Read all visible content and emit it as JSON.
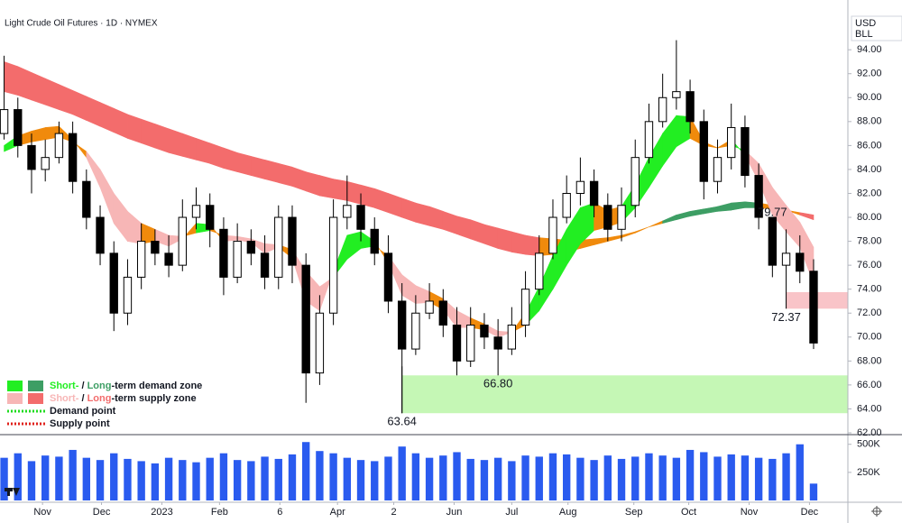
{
  "chart_data": {
    "type": "candlestick",
    "title": "Light Crude Oil Futures · 1D · NYMEX",
    "currency": "USD",
    "unit": "BLL",
    "xlim": [
      -0.3,
      61.5
    ],
    "xticks": [
      {
        "value": 2.8,
        "label": "Nov"
      },
      {
        "value": 7.1,
        "label": "Dec"
      },
      {
        "value": 11.5,
        "label": "2023"
      },
      {
        "value": 15.7,
        "label": "Feb"
      },
      {
        "value": 20.1,
        "label": "6"
      },
      {
        "value": 24.3,
        "label": "Apr"
      },
      {
        "value": 28.4,
        "label": "2"
      },
      {
        "value": 32.8,
        "label": "Jun"
      },
      {
        "value": 37.0,
        "label": "Jul"
      },
      {
        "value": 41.1,
        "label": "Aug"
      },
      {
        "value": 45.9,
        "label": "Sep"
      },
      {
        "value": 49.9,
        "label": "Oct"
      },
      {
        "value": 54.3,
        "label": "Nov"
      },
      {
        "value": 58.7,
        "label": "Dec"
      }
    ],
    "ylim": [
      62,
      96.8
    ],
    "yticks": [
      {
        "value": 62,
        "label": "62.00"
      },
      {
        "value": 64,
        "label": "64.00"
      },
      {
        "value": 66,
        "label": "66.00"
      },
      {
        "value": 68,
        "label": "68.00"
      },
      {
        "value": 70,
        "label": "70.00"
      },
      {
        "value": 72,
        "label": "72.00"
      },
      {
        "value": 74,
        "label": "74.00"
      },
      {
        "value": 76,
        "label": "76.00"
      },
      {
        "value": 78,
        "label": "78.00"
      },
      {
        "value": 80,
        "label": "80.00"
      },
      {
        "value": 82,
        "label": "82.00"
      },
      {
        "value": 84,
        "label": "84.00"
      },
      {
        "value": 86,
        "label": "86.00"
      },
      {
        "value": 88,
        "label": "88.00"
      },
      {
        "value": 90,
        "label": "90.00"
      },
      {
        "value": 92,
        "label": "92.00"
      },
      {
        "value": 94,
        "label": "94.00"
      }
    ],
    "up_color": "#ffffff",
    "down_color": "#000000",
    "open": [
      87,
      89,
      86,
      84,
      85,
      87,
      83,
      80,
      77,
      72,
      75,
      78,
      77,
      76,
      80,
      81,
      79,
      75,
      78,
      77,
      75,
      80,
      76,
      67,
      72,
      80,
      81,
      79,
      77,
      73,
      69,
      72,
      73,
      71,
      68,
      71,
      70,
      69,
      71,
      74,
      77,
      80,
      82,
      83,
      81,
      79,
      81,
      85,
      88,
      90,
      90.5,
      88,
      83,
      85,
      87.5,
      83.5,
      80,
      76,
      77,
      75.5
    ],
    "high": [
      93.5,
      90,
      87,
      86.5,
      88,
      88,
      84,
      81,
      78,
      76.5,
      79.5,
      79,
      78.5,
      81.5,
      82.5,
      82,
      80,
      79.5,
      79,
      78.5,
      81,
      81,
      77,
      73.5,
      81.5,
      83.5,
      82,
      80,
      78.5,
      74.5,
      73.5,
      74.5,
      74,
      72.5,
      72.5,
      72,
      71.5,
      72.5,
      75.5,
      78.5,
      81.5,
      83.5,
      85,
      84,
      82,
      82.5,
      86.5,
      89.5,
      92,
      94.8,
      91.5,
      89,
      86.5,
      89.5,
      88.5,
      84.5,
      79.77,
      79,
      78.5,
      76.5
    ],
    "low": [
      86.5,
      85,
      82,
      83,
      84.5,
      82,
      79,
      76,
      70.5,
      71,
      74,
      76,
      75,
      75.5,
      79,
      77.5,
      73.5,
      74.5,
      76,
      74,
      74,
      74.5,
      64.5,
      66,
      71,
      79,
      78,
      76,
      72,
      63.64,
      68.5,
      71.5,
      70,
      66.8,
      67.5,
      69,
      66.8,
      68.5,
      70,
      73.5,
      76.5,
      79.5,
      81,
      80,
      78,
      78,
      80,
      84.5,
      87.5,
      89,
      87,
      81.5,
      82,
      84,
      82.5,
      79,
      75,
      72.37,
      74.5,
      69
    ],
    "close": [
      89,
      86,
      84,
      85,
      87,
      83,
      80,
      77,
      72,
      75,
      78,
      77,
      76,
      80,
      81,
      79,
      75,
      78,
      77,
      75,
      80,
      76,
      67,
      72,
      80,
      81,
      79,
      77,
      73,
      69,
      72,
      73,
      71,
      68,
      71,
      70,
      69,
      71,
      74,
      77,
      80,
      82,
      83,
      81,
      79,
      81,
      85,
      88,
      90,
      90.5,
      88,
      83,
      85,
      87.5,
      83.5,
      80,
      76,
      77,
      75.5,
      69.5
    ],
    "ribbons": [
      {
        "fast": [
          90.5,
          90.2,
          89.8,
          89.4,
          89,
          88.6,
          88.1,
          87.6,
          87.1,
          86.6,
          86.2,
          85.8,
          85.4,
          85.1,
          84.8,
          84.5,
          84.1,
          83.8,
          83.5,
          83.2,
          82.9,
          82.6,
          82.2,
          81.8,
          81.6,
          81.4,
          81.1,
          80.8,
          80.4,
          80,
          79.6,
          79.3,
          79,
          78.6,
          78.2,
          77.8,
          77.4,
          77.1,
          76.9,
          76.8,
          76.9,
          77.1,
          77.4,
          77.7,
          78,
          78.3,
          78.7,
          79.2,
          79.7,
          80.2,
          80.5,
          80.7,
          80.9,
          81.2,
          81.3,
          81.2,
          81,
          80.6,
          80.2,
          79.8
        ],
        "slow": [
          93,
          92.6,
          92.1,
          91.6,
          91.1,
          90.6,
          90.1,
          89.6,
          89.1,
          88.6,
          88.2,
          87.8,
          87.4,
          87,
          86.6,
          86.2,
          85.8,
          85.4,
          85.1,
          84.8,
          84.5,
          84.2,
          83.8,
          83.5,
          83.2,
          83,
          82.7,
          82.4,
          82,
          81.6,
          81.2,
          80.9,
          80.5,
          80.1,
          79.8,
          79.4,
          79.1,
          78.8,
          78.5,
          78.3,
          78.2,
          78.1,
          78.1,
          78.2,
          78.3,
          78.5,
          78.8,
          79.2,
          79.5,
          79.8,
          80.1,
          80.3,
          80.5,
          80.6,
          80.8,
          80.8,
          80.7,
          80.6,
          80.4,
          80.2
        ],
        "demand_color": "#3d9e64",
        "supply_color": "#f36c6c",
        "neutral_color": "#f08a0c"
      },
      {
        "fast": [
          86,
          86.8,
          87.2,
          87.5,
          87.6,
          86.5,
          85,
          82.5,
          79.5,
          78,
          77.8,
          78,
          77.6,
          78.2,
          79.5,
          79.4,
          78,
          78.1,
          77.9,
          77,
          77.5,
          76.6,
          73,
          72.2,
          75.5,
          78.5,
          78.8,
          78,
          76.2,
          73.5,
          72.8,
          72.9,
          72.3,
          70.8,
          70.8,
          70.6,
          70,
          70.4,
          72,
          74.2,
          76.8,
          79,
          80.8,
          81.2,
          80.6,
          80.9,
          82.7,
          85,
          87,
          88.5,
          88.4,
          86.3,
          85.8,
          86.5,
          85.2,
          83,
          80.2,
          78.8,
          77.5,
          74.5
        ],
        "slow": [
          85.5,
          86,
          86.3,
          86.5,
          86.7,
          86.3,
          85.5,
          84,
          82,
          80.5,
          79.5,
          79,
          78.5,
          78.4,
          78.7,
          78.9,
          78.5,
          78.4,
          78.2,
          77.8,
          77.7,
          77.3,
          75.5,
          74.2,
          75,
          76.5,
          77.4,
          77.6,
          76.8,
          75.2,
          74.3,
          73.8,
          73.2,
          72.2,
          71.6,
          71.1,
          70.5,
          70.4,
          71,
          72.2,
          74,
          76,
          77.8,
          78.9,
          79.2,
          79.6,
          80.8,
          82.5,
          84.3,
          85.9,
          86.6,
          86,
          85.8,
          86,
          85.6,
          84.5,
          82.5,
          81,
          79.6,
          77.5
        ],
        "demand_color": "#22ee22",
        "supply_color": "#f7b6b6",
        "neutral_color": "#f08a0c"
      }
    ],
    "zones": [
      {
        "low": 63.64,
        "high": 66.8,
        "start": 29,
        "color": "#c5f7b5"
      },
      {
        "low": 72.37,
        "high": 73.75,
        "start": 57,
        "color": "#f9c4c8"
      }
    ],
    "annotations": [
      {
        "value": 79.77,
        "label": "79.77",
        "x": 56
      },
      {
        "value": 72.37,
        "label": "72.37",
        "x": 57
      },
      {
        "value": 66.8,
        "label": "66.80",
        "x": 36
      },
      {
        "value": 63.64,
        "label": "63.64",
        "x": 29
      }
    ],
    "legend": [
      {
        "parts": [
          "Short-",
          " / ",
          "Long",
          "-term demand zone"
        ],
        "colors": [
          "#22ee22",
          "#3d9e64"
        ]
      },
      {
        "parts": [
          "Short-",
          " / ",
          "Long",
          "-term supply zone"
        ],
        "colors": [
          "#f7b6b6",
          "#f36c6c"
        ]
      },
      {
        "label": "Demand point",
        "color": "#1fdc1f"
      },
      {
        "label": "Supply point",
        "color": "#e0201a"
      }
    ],
    "volume": {
      "color": "#2a5bef",
      "ylim": [
        0,
        570000
      ],
      "yticks": [
        {
          "value": 250000,
          "label": "250K"
        },
        {
          "value": 500000,
          "label": "500K"
        }
      ],
      "values": [
        380000,
        420000,
        350000,
        400000,
        390000,
        450000,
        380000,
        360000,
        420000,
        370000,
        350000,
        330000,
        380000,
        360000,
        340000,
        380000,
        420000,
        360000,
        350000,
        390000,
        370000,
        410000,
        520000,
        440000,
        420000,
        380000,
        360000,
        350000,
        390000,
        480000,
        420000,
        380000,
        400000,
        430000,
        370000,
        360000,
        380000,
        350000,
        400000,
        390000,
        420000,
        410000,
        380000,
        360000,
        400000,
        370000,
        390000,
        420000,
        400000,
        380000,
        450000,
        430000,
        390000,
        410000,
        400000,
        380000,
        370000,
        420000,
        500000,
        150000
      ]
    }
  }
}
